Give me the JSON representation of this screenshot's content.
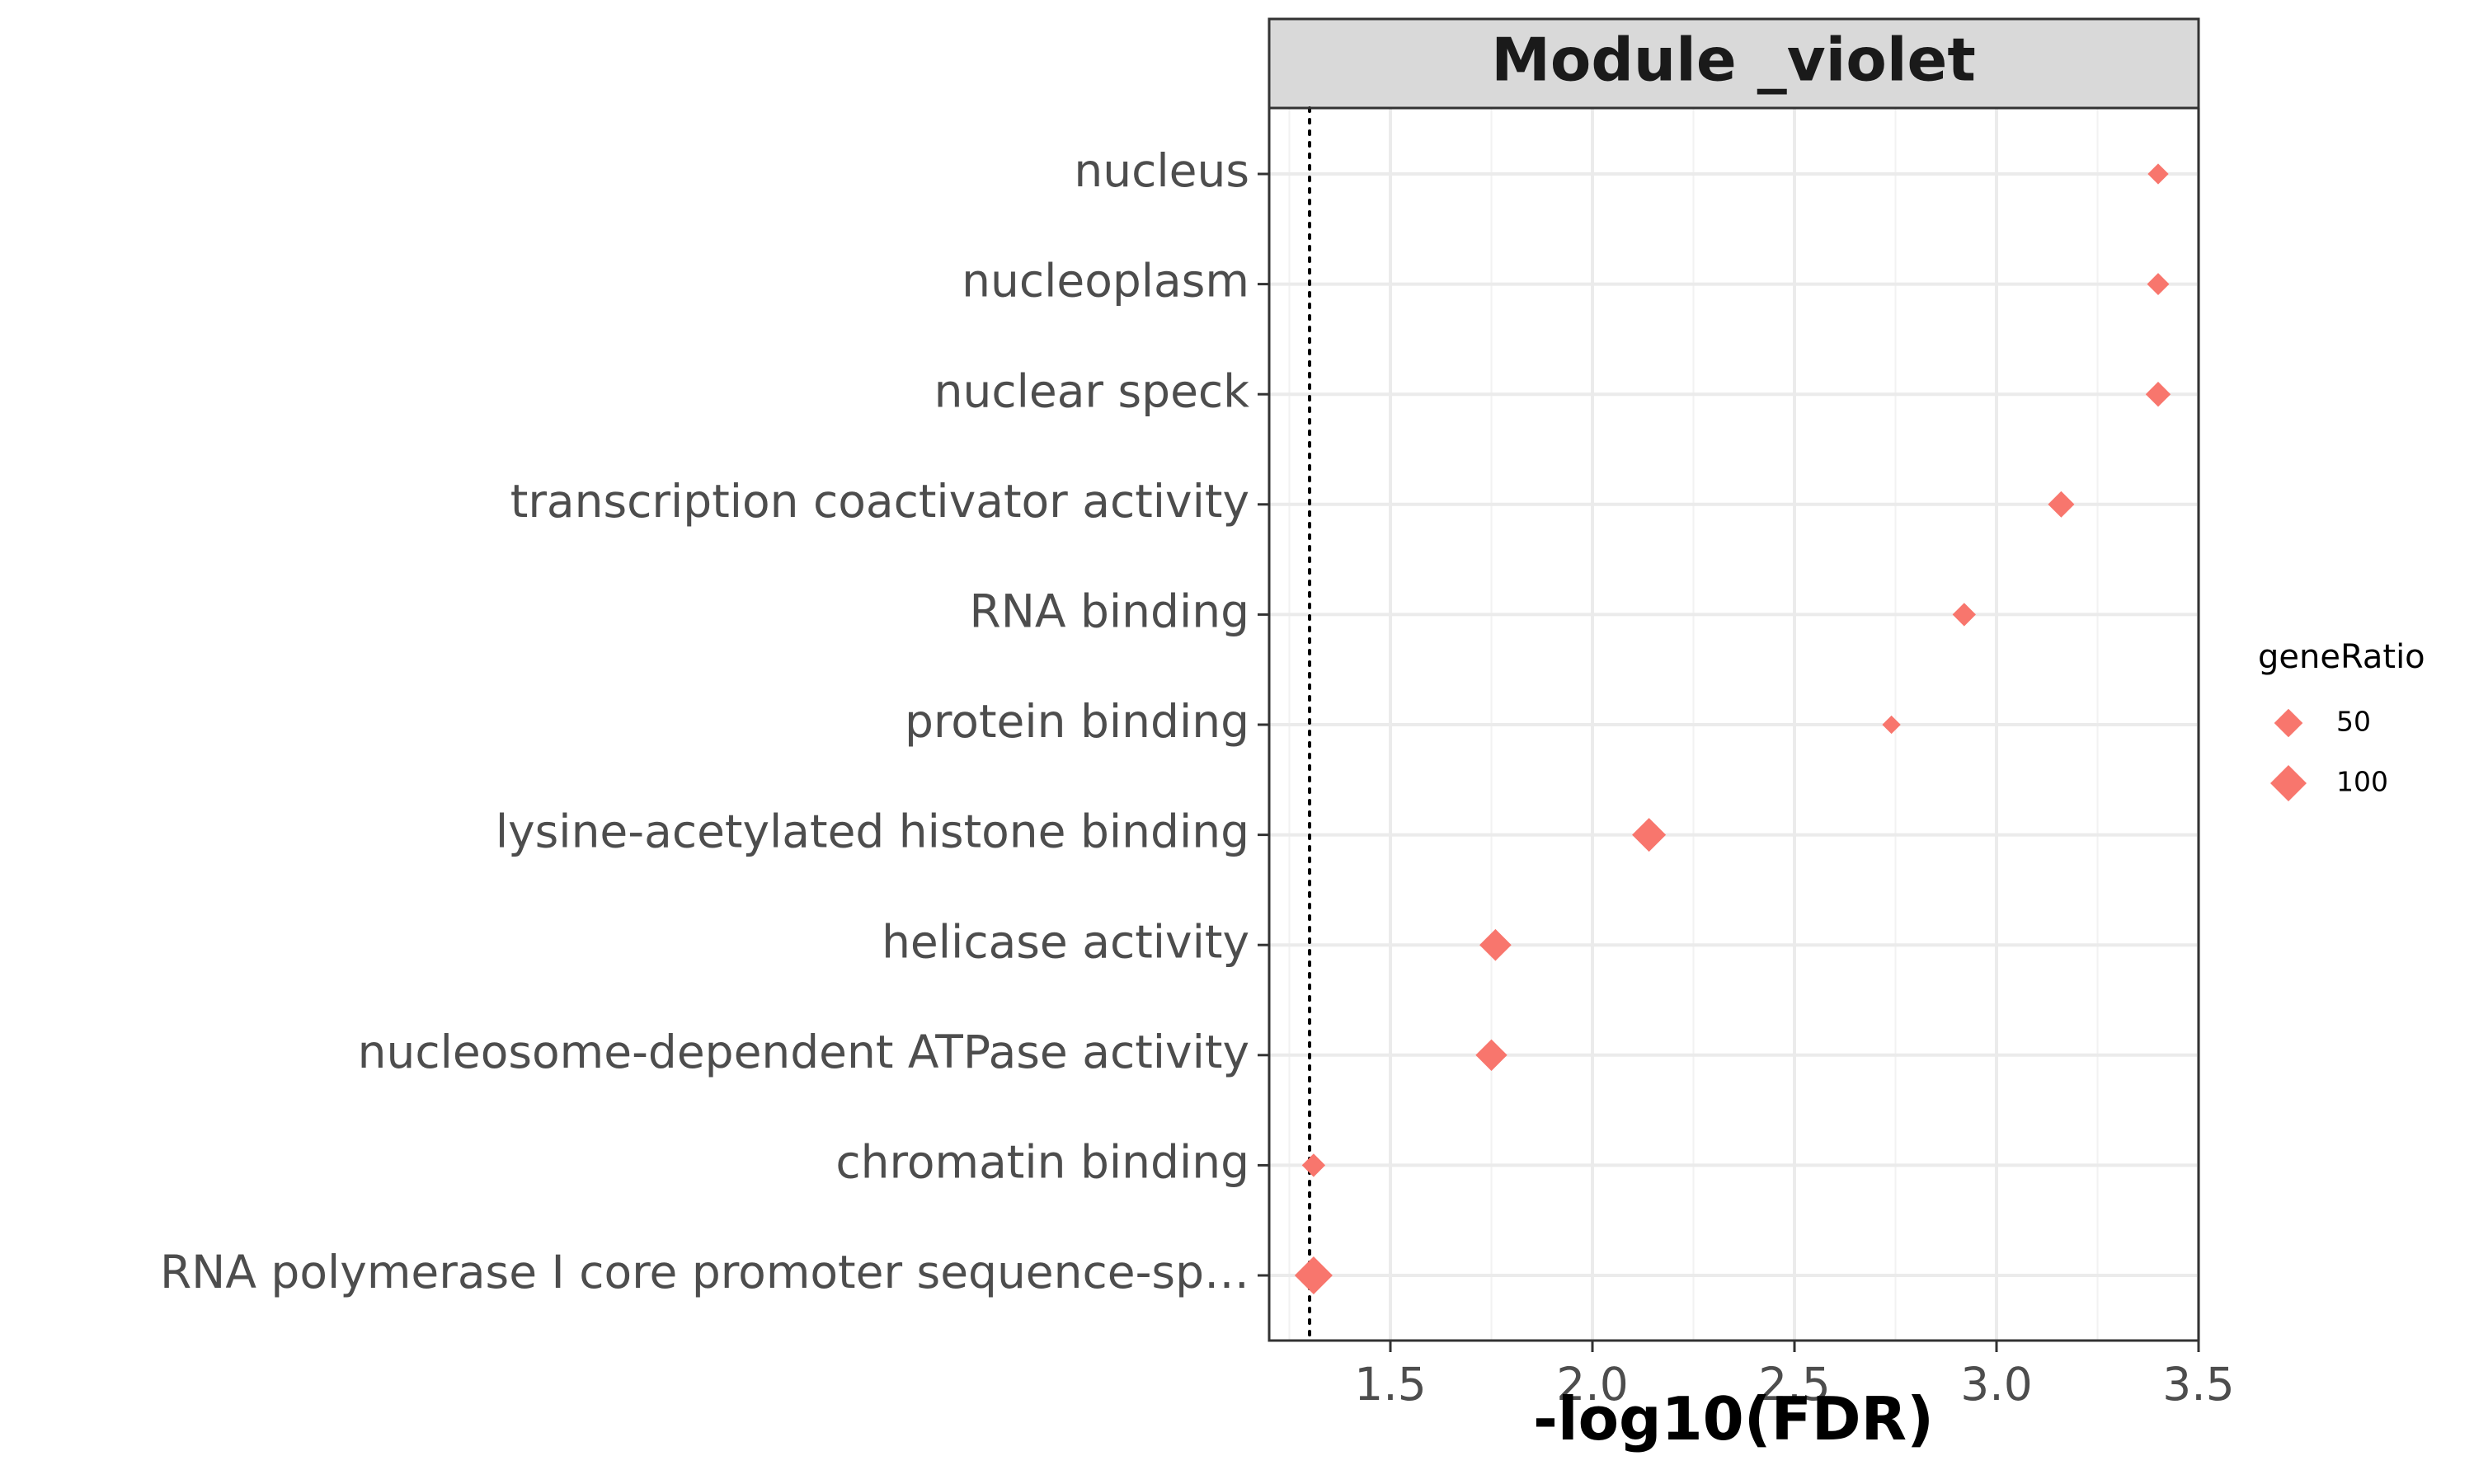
{
  "chart_data": {
    "type": "scatter",
    "title": "Module _violet",
    "xlabel": "-log10(FDR)",
    "ylabel": "",
    "xlim": [
      1.2,
      3.5
    ],
    "x_ticks": [
      1.5,
      2.0,
      2.5,
      3.0,
      3.5
    ],
    "x_tick_labels": [
      "1.5",
      "2.0",
      "2.5",
      "3.0",
      "3.5"
    ],
    "threshold_line": 1.3,
    "grid": true,
    "marker": "diamond",
    "marker_color": "#F8766D",
    "categories": [
      "nucleus",
      "nucleoplasm",
      "nuclear speck",
      "transcription coactivator activity",
      "RNA binding",
      "protein binding",
      "lysine-acetylated histone binding",
      "helicase activity",
      "nucleosome-dependent ATPase activity",
      "chromatin binding",
      "RNA polymerase I core promoter sequence-sp…"
    ],
    "x": [
      3.4,
      3.4,
      3.4,
      3.16,
      2.92,
      2.74,
      2.14,
      1.76,
      1.75,
      1.31,
      1.31
    ],
    "size": [
      20,
      25,
      38,
      45,
      30,
      12,
      95,
      80,
      78,
      30,
      130
    ],
    "legend": {
      "title": "geneRatio",
      "placement": "right",
      "items": [
        {
          "label": "50",
          "value": 50
        },
        {
          "label": "100",
          "value": 100
        }
      ]
    }
  }
}
